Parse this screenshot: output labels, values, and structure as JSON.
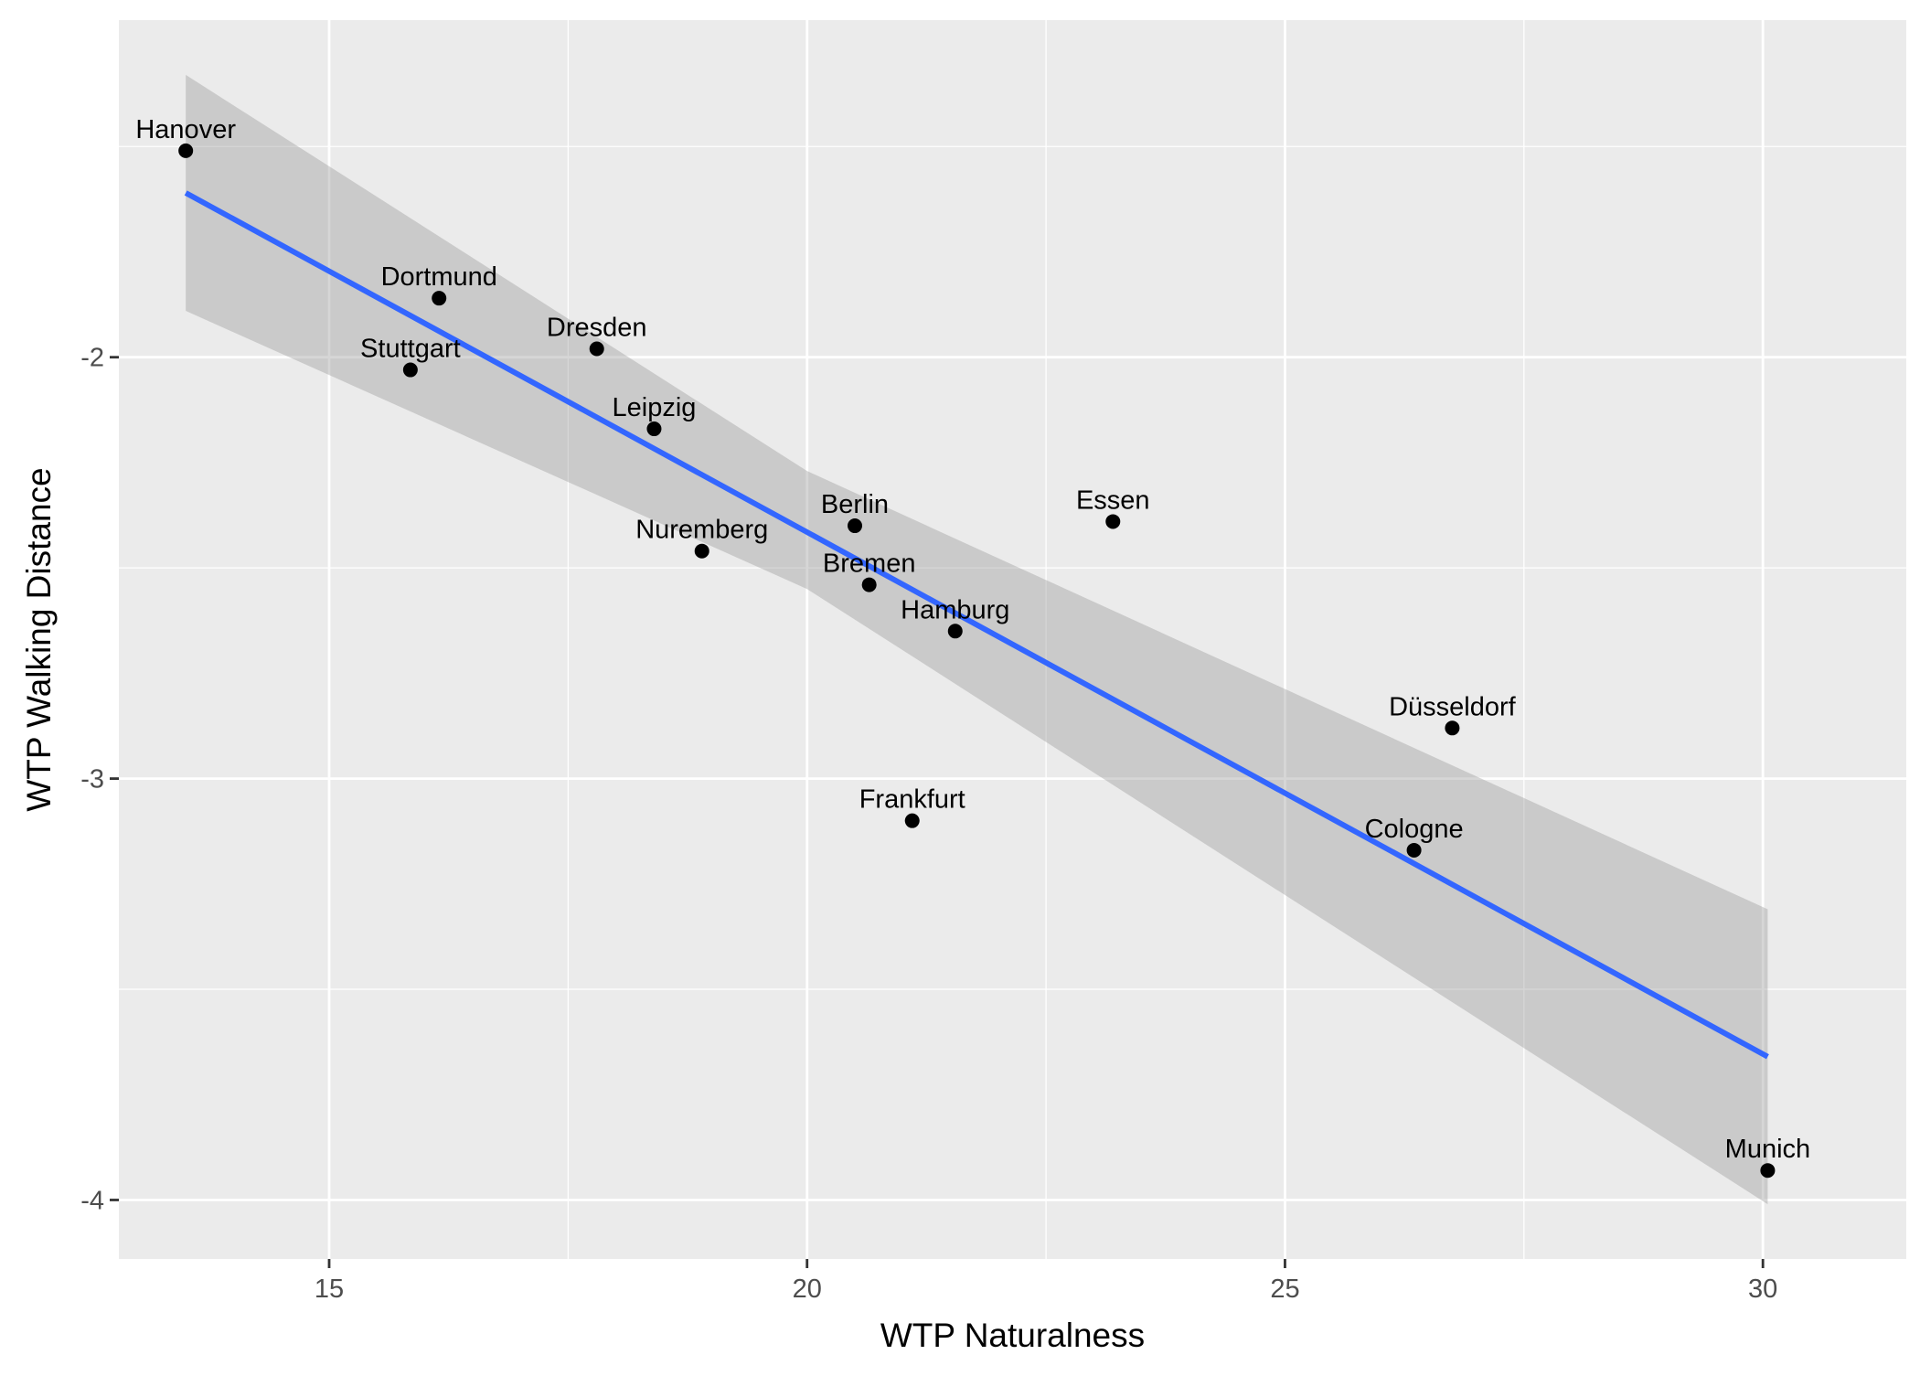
{
  "chart_data": {
    "type": "scatter",
    "title": "",
    "xlabel": "WTP Naturalness",
    "ylabel": "WTP Walking Distance",
    "xlim": [
      12.8,
      31.5
    ],
    "ylim": [
      -4.14,
      -1.2
    ],
    "x_ticks": [
      15,
      20,
      25,
      30
    ],
    "y_ticks": [
      -4,
      -3,
      -2
    ],
    "x_tick_labels": [
      "15",
      "20",
      "25",
      "30"
    ],
    "y_tick_labels": [
      "-4",
      "-3",
      "-2"
    ],
    "grid": true,
    "legend": "none",
    "colors": {
      "panel": "#EBEBEB",
      "grid": "#FFFFFF",
      "point": "#000000",
      "line": "#3366FF",
      "ribbon": "#999999"
    },
    "points": [
      {
        "label": "Hanover",
        "x": 13.5,
        "y": -1.51
      },
      {
        "label": "Dortmund",
        "x": 16.15,
        "y": -1.86
      },
      {
        "label": "Stuttgart",
        "x": 15.85,
        "y": -2.03
      },
      {
        "label": "Dresden",
        "x": 17.8,
        "y": -1.98
      },
      {
        "label": "Leipzig",
        "x": 18.4,
        "y": -2.17
      },
      {
        "label": "Nuremberg",
        "x": 18.9,
        "y": -2.46
      },
      {
        "label": "Berlin",
        "x": 20.5,
        "y": -2.4
      },
      {
        "label": "Bremen",
        "x": 20.65,
        "y": -2.54
      },
      {
        "label": "Hamburg",
        "x": 21.55,
        "y": -2.65
      },
      {
        "label": "Essen",
        "x": 23.2,
        "y": -2.39
      },
      {
        "label": "Frankfurt",
        "x": 21.1,
        "y": -3.1
      },
      {
        "label": "Düsseldorf",
        "x": 26.75,
        "y": -2.88
      },
      {
        "label": "Cologne",
        "x": 26.35,
        "y": -3.17
      },
      {
        "label": "Munich",
        "x": 30.05,
        "y": -3.93
      }
    ],
    "trend_line": {
      "method": "linear",
      "x": [
        13.5,
        30.05
      ],
      "y": [
        -1.61,
        -3.66
      ]
    },
    "confidence_band": {
      "x": [
        13.5,
        20.0,
        30.05
      ],
      "upper": [
        -1.33,
        -2.27,
        -3.31
      ],
      "lower": [
        -1.89,
        -2.55,
        -4.01
      ]
    }
  }
}
